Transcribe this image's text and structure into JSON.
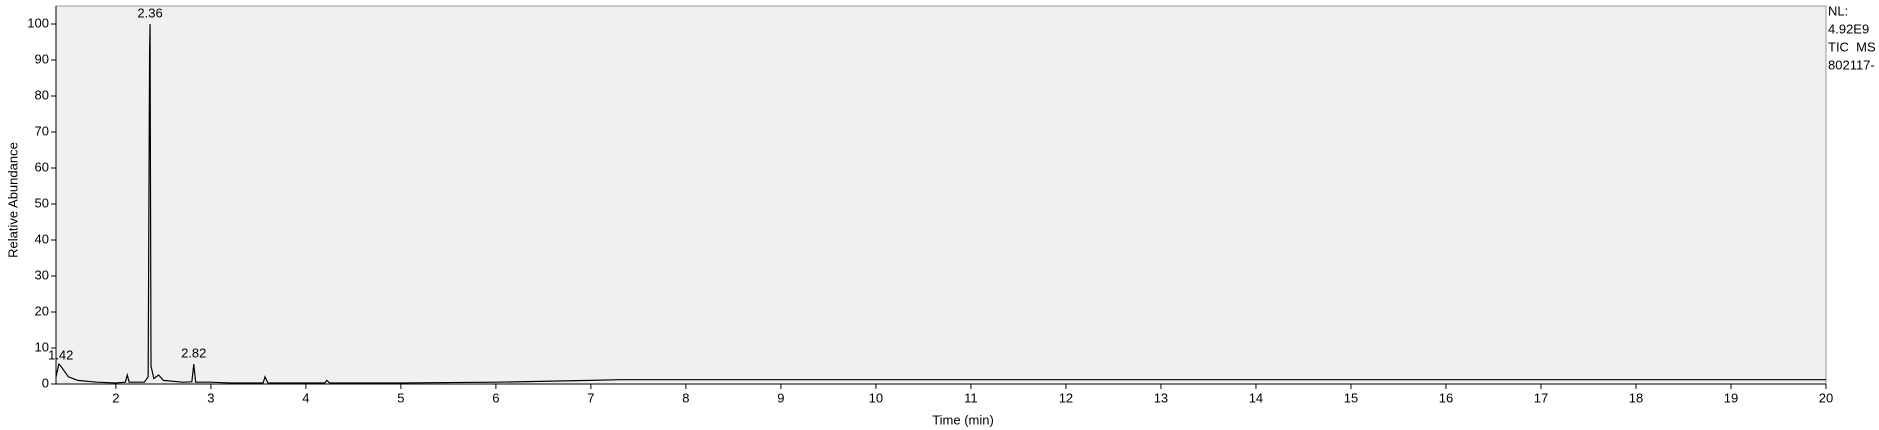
{
  "chart_data": {
    "type": "line",
    "x_label": "Time (min)",
    "y_label": "Relative Abundance",
    "side_text": [
      "NL:",
      "4.92E9",
      "TIC  MS",
      "802117-"
    ],
    "x": [
      1.37,
      1.4,
      1.42,
      1.5,
      1.6,
      1.8,
      2.0,
      2.1,
      2.12,
      2.14,
      2.3,
      2.34,
      2.355,
      2.36,
      2.365,
      2.37,
      2.4,
      2.45,
      2.5,
      2.7,
      2.8,
      2.82,
      2.84,
      3.0,
      3.2,
      3.55,
      3.57,
      3.6,
      4.2,
      4.22,
      4.25,
      5.0,
      6.0,
      7.0,
      7.3,
      10,
      20
    ],
    "series": [
      {
        "name": "TIC",
        "color": "#000000",
        "values": [
          2,
          5.5,
          5,
          2,
          1,
          0.5,
          0.3,
          0.5,
          2.5,
          0.5,
          0.5,
          2,
          92,
          100,
          51,
          5,
          1.5,
          2.5,
          1,
          0.5,
          0.6,
          5.5,
          0.5,
          0.5,
          0.3,
          0.3,
          2,
          0.3,
          0.3,
          1,
          0.3,
          0.3,
          0.5,
          1,
          1.2,
          1.2,
          1.2
        ]
      }
    ],
    "annotations": [
      {
        "text": "1.42",
        "x": 1.42,
        "y": 5
      },
      {
        "text": "2.36",
        "x": 2.36,
        "y": 100
      },
      {
        "text": "2.82",
        "x": 2.82,
        "y": 5.5
      }
    ],
    "xlim": [
      1.37,
      20
    ],
    "ylim": [
      0,
      105
    ],
    "xticks": [
      2,
      3,
      4,
      5,
      6,
      7,
      8,
      9,
      10,
      11,
      12,
      13,
      14,
      15,
      16,
      17,
      18,
      19,
      20
    ],
    "yticks": [
      0,
      10,
      20,
      30,
      40,
      50,
      60,
      70,
      80,
      90,
      100
    ]
  }
}
